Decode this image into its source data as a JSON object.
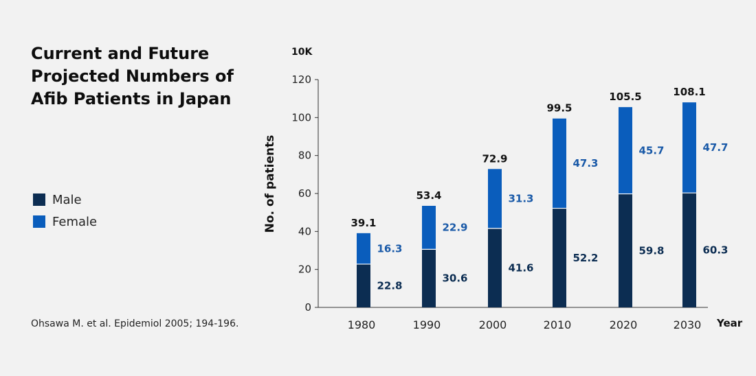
{
  "title_lines": [
    "Current and Future",
    "Projected Numbers of",
    "Afib Patients in Japan"
  ],
  "legend": [
    {
      "label": "Male",
      "color": "#0c2d52"
    },
    {
      "label": "Female",
      "color": "#0a5dbc"
    }
  ],
  "source": "Ohsawa M. et al. Epidemiol 2005; 194-196.",
  "chart_data": {
    "type": "bar",
    "stacked": true,
    "categories": [
      "1980",
      "1990",
      "2000",
      "2010",
      "2020",
      "2030"
    ],
    "series": [
      {
        "name": "Male",
        "values": [
          22.8,
          30.6,
          41.6,
          52.2,
          59.8,
          60.3
        ],
        "color": "#0c2d52",
        "label_color": "#0c2d52"
      },
      {
        "name": "Female",
        "values": [
          16.3,
          22.9,
          31.3,
          47.3,
          45.7,
          47.7
        ],
        "color": "#0a5dbc",
        "label_color": "#1a5aa8"
      }
    ],
    "totals": [
      "39.1",
      "53.4",
      "72.9",
      "99.5",
      "105.5",
      "108.1"
    ],
    "title": "",
    "xlabel": "Year",
    "ylabel": "No. of patients",
    "unit": "10K",
    "ylim": [
      0,
      120
    ],
    "yticks": [
      0,
      20,
      40,
      60,
      80,
      100,
      120
    ],
    "grid": false
  }
}
